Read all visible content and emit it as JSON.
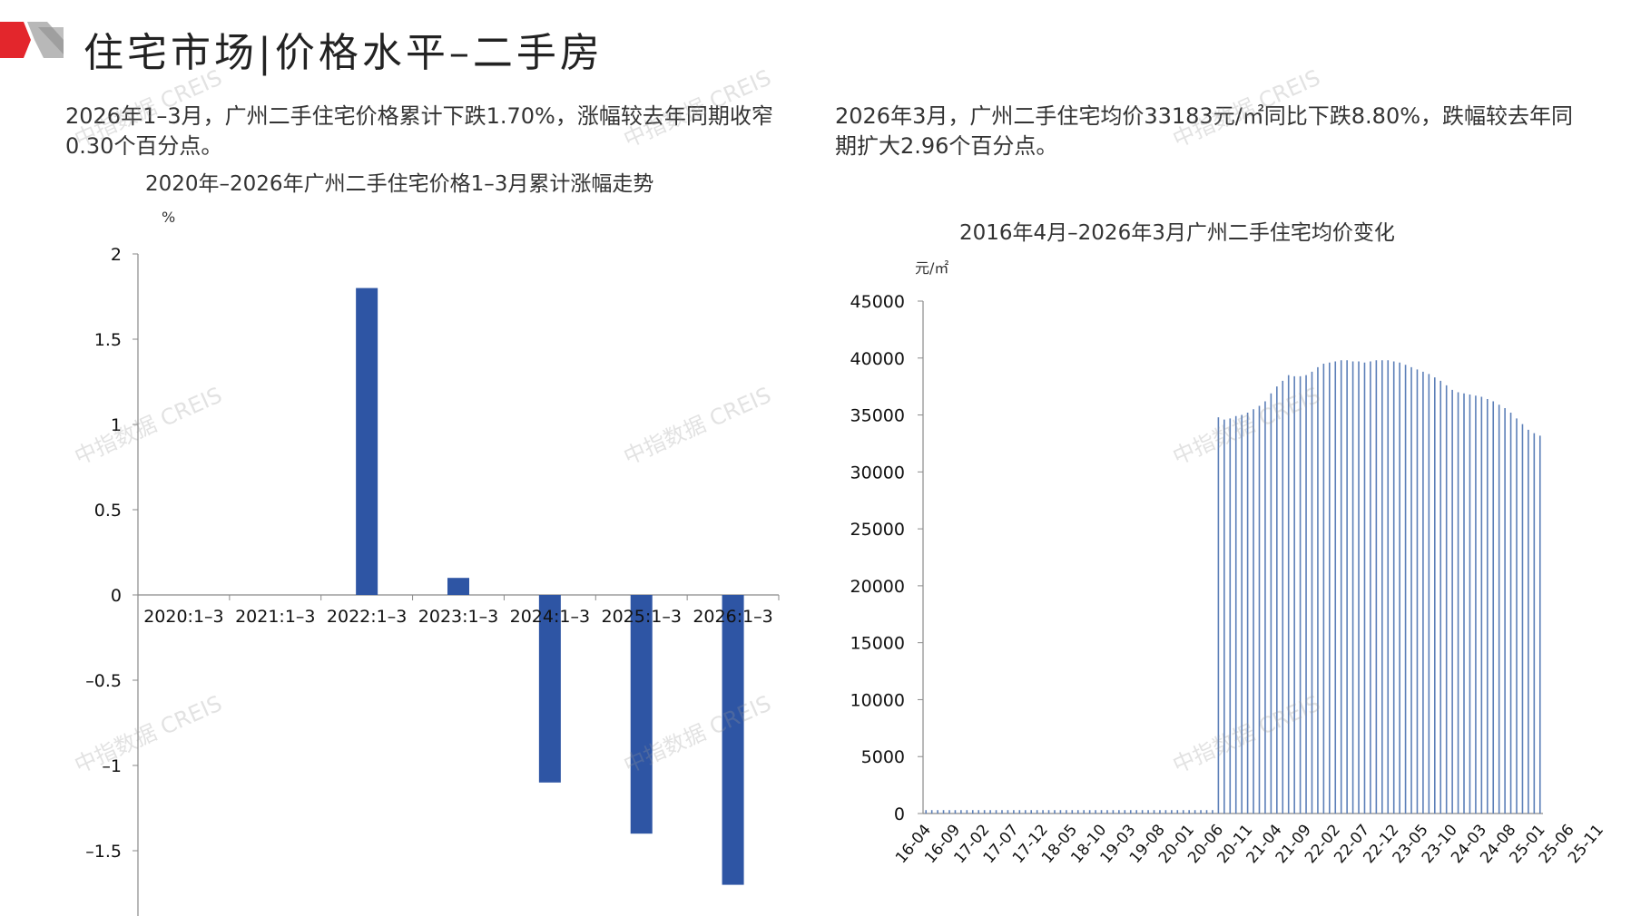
{
  "header": {
    "title": "住宅市场|价格水平–二手房",
    "accent_color": "#e3262c"
  },
  "summary_left": "2026年1–3月，广州二手住宅价格累计下跌1.70%，涨幅较去年同期收窄0.30个百分点。",
  "summary_right": "2026年3月，广州二手住宅均价33183元/㎡同比下跌8.80%，跌幅较去年同期扩大2.96个百分点。",
  "watermark": "中指数据 CREIS",
  "chart_data": [
    {
      "type": "bar",
      "title": "2020年–2026年广州二手住宅价格1–3月累计涨幅走势",
      "ylabel": "%",
      "categories": [
        "2020:1–3",
        "2021:1–3",
        "2022:1–3",
        "2023:1–3",
        "2024:1–3",
        "2025:1–3",
        "2026:1–3"
      ],
      "values": [
        0,
        0,
        1.8,
        0.1,
        -1.1,
        -1.4,
        -1.7
      ],
      "yticks": [
        "2",
        "1.5",
        "1",
        "0.5",
        "0",
        "–0.5",
        "–1",
        "–1.5"
      ],
      "ylim": [
        -1.9,
        2
      ],
      "bar_color": "#2e55a4",
      "grid": false
    },
    {
      "type": "bar",
      "title": "2016年4月–2026年3月广州二手住宅均价变化",
      "ylabel": "元/㎡",
      "yticks": [
        "45000",
        "40000",
        "35000",
        "30000",
        "25000",
        "20000",
        "15000",
        "10000",
        "5000",
        "0"
      ],
      "ylim": [
        0,
        45000
      ],
      "xticks": [
        "16-04",
        "16-09",
        "17-02",
        "17-07",
        "17-12",
        "18-05",
        "18-10",
        "19-03",
        "19-08",
        "20-01",
        "20-06",
        "20-11",
        "21-04",
        "21-09",
        "22-02",
        "22-07",
        "22-12",
        "23-05",
        "23-10",
        "24-03",
        "24-08",
        "25-01",
        "25-06",
        "25-11"
      ],
      "values": [
        300,
        300,
        300,
        300,
        300,
        300,
        300,
        300,
        300,
        300,
        300,
        300,
        300,
        300,
        300,
        300,
        300,
        300,
        300,
        300,
        300,
        300,
        300,
        300,
        300,
        300,
        300,
        300,
        300,
        300,
        300,
        300,
        300,
        300,
        300,
        300,
        300,
        300,
        300,
        300,
        300,
        300,
        300,
        300,
        300,
        300,
        300,
        300,
        300,
        300,
        34800,
        34600,
        34700,
        34900,
        35000,
        35200,
        35500,
        35800,
        36200,
        36900,
        37500,
        38000,
        38500,
        38400,
        38400,
        38500,
        38800,
        39200,
        39500,
        39600,
        39700,
        39800,
        39800,
        39700,
        39700,
        39600,
        39700,
        39800,
        39800,
        39800,
        39700,
        39600,
        39400,
        39200,
        39000,
        38800,
        38600,
        38300,
        38000,
        37600,
        37200,
        37000,
        36900,
        36800,
        36700,
        36600,
        36400,
        36200,
        35900,
        35600,
        35200,
        34700,
        34200,
        33700,
        33400,
        33183
      ],
      "bar_color": "#5c7fb8",
      "grid": false
    }
  ]
}
